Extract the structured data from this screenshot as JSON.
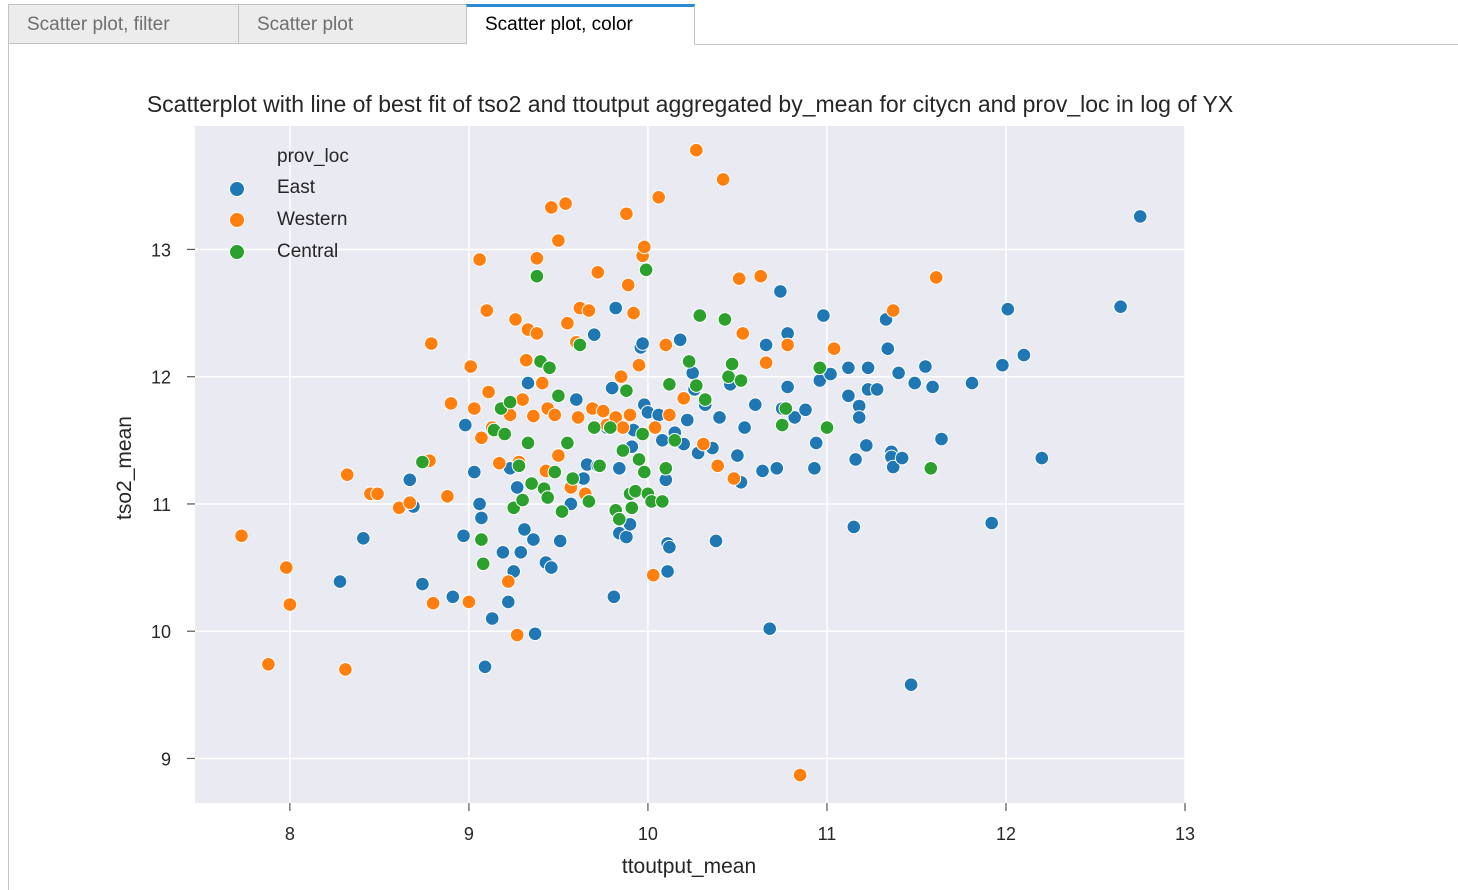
{
  "tabs": [
    {
      "label": "Scatter plot, filter",
      "active": false
    },
    {
      "label": "Scatter plot",
      "active": false
    },
    {
      "label": "Scatter plot, color",
      "active": true
    }
  ],
  "colors": {
    "East": "#1f77b4",
    "Western": "#ff7f0e",
    "Central": "#2ca02c",
    "plot_background": "#eaeaf2",
    "tab_accent": "#2a8ad4"
  },
  "chart_data": {
    "type": "scatter",
    "title": "Scatterplot with line of best fit of tso2 and ttoutput aggregated by_mean for citycn and prov_loc in log of YX",
    "xlabel": "ttoutput_mean",
    "ylabel": "tso2_mean",
    "xlim": [
      7.47,
      13.0
    ],
    "ylim": [
      8.65,
      13.97
    ],
    "xticks": [
      8,
      9,
      10,
      11,
      12,
      13
    ],
    "yticks": [
      9,
      10,
      11,
      12,
      13
    ],
    "grid": true,
    "legend": {
      "title": "prov_loc",
      "position": "top-left",
      "entries": [
        "East",
        "Western",
        "Central"
      ]
    },
    "series": [
      {
        "name": "East",
        "points": [
          [
            8.28,
            10.39
          ],
          [
            8.41,
            10.73
          ],
          [
            8.67,
            11.19
          ],
          [
            8.69,
            10.98
          ],
          [
            8.74,
            10.37
          ],
          [
            8.91,
            10.27
          ],
          [
            8.97,
            10.75
          ],
          [
            8.98,
            11.62
          ],
          [
            9.03,
            11.25
          ],
          [
            9.06,
            11.0
          ],
          [
            9.07,
            10.89
          ],
          [
            9.09,
            9.72
          ],
          [
            9.13,
            10.1
          ],
          [
            9.19,
            10.62
          ],
          [
            9.22,
            10.23
          ],
          [
            9.23,
            11.28
          ],
          [
            9.25,
            10.47
          ],
          [
            9.27,
            11.13
          ],
          [
            9.29,
            10.62
          ],
          [
            9.31,
            10.8
          ],
          [
            9.33,
            11.95
          ],
          [
            9.36,
            10.72
          ],
          [
            9.37,
            9.98
          ],
          [
            9.43,
            10.54
          ],
          [
            9.46,
            10.5
          ],
          [
            9.51,
            10.71
          ],
          [
            9.57,
            11.0
          ],
          [
            9.6,
            11.82
          ],
          [
            9.64,
            11.2
          ],
          [
            9.66,
            11.31
          ],
          [
            9.7,
            12.33
          ],
          [
            9.72,
            11.3
          ],
          [
            9.77,
            11.6
          ],
          [
            9.8,
            11.91
          ],
          [
            9.81,
            10.27
          ],
          [
            9.82,
            12.54
          ],
          [
            9.84,
            11.28
          ],
          [
            9.84,
            10.77
          ],
          [
            9.88,
            10.74
          ],
          [
            9.9,
            10.84
          ],
          [
            9.91,
            11.45
          ],
          [
            9.92,
            11.58
          ],
          [
            9.96,
            12.23
          ],
          [
            9.97,
            12.26
          ],
          [
            9.98,
            11.78
          ],
          [
            10.0,
            11.72
          ],
          [
            10.06,
            11.7
          ],
          [
            10.08,
            11.5
          ],
          [
            10.1,
            11.28
          ],
          [
            10.1,
            11.19
          ],
          [
            10.11,
            10.69
          ],
          [
            10.11,
            10.47
          ],
          [
            10.12,
            10.66
          ],
          [
            10.15,
            11.56
          ],
          [
            10.18,
            12.29
          ],
          [
            10.2,
            11.47
          ],
          [
            10.22,
            11.66
          ],
          [
            10.25,
            12.03
          ],
          [
            10.26,
            11.9
          ],
          [
            10.28,
            11.4
          ],
          [
            10.32,
            11.78
          ],
          [
            10.36,
            11.44
          ],
          [
            10.38,
            10.71
          ],
          [
            10.4,
            11.68
          ],
          [
            10.46,
            11.94
          ],
          [
            10.5,
            11.38
          ],
          [
            10.52,
            11.17
          ],
          [
            10.54,
            11.6
          ],
          [
            10.6,
            11.78
          ],
          [
            10.64,
            11.26
          ],
          [
            10.66,
            12.25
          ],
          [
            10.68,
            10.02
          ],
          [
            10.72,
            11.28
          ],
          [
            10.74,
            12.67
          ],
          [
            10.75,
            11.75
          ],
          [
            10.78,
            12.34
          ],
          [
            10.78,
            11.92
          ],
          [
            10.82,
            11.68
          ],
          [
            10.88,
            11.74
          ],
          [
            10.93,
            11.28
          ],
          [
            10.94,
            11.48
          ],
          [
            10.96,
            11.97
          ],
          [
            10.98,
            12.48
          ],
          [
            11.02,
            12.02
          ],
          [
            11.12,
            12.07
          ],
          [
            11.12,
            11.85
          ],
          [
            11.15,
            10.82
          ],
          [
            11.16,
            11.35
          ],
          [
            11.18,
            11.77
          ],
          [
            11.18,
            11.68
          ],
          [
            11.22,
            11.46
          ],
          [
            11.23,
            11.9
          ],
          [
            11.23,
            12.07
          ],
          [
            11.28,
            11.9
          ],
          [
            11.33,
            12.45
          ],
          [
            11.34,
            12.22
          ],
          [
            11.36,
            11.41
          ],
          [
            11.36,
            11.37
          ],
          [
            11.37,
            11.29
          ],
          [
            11.4,
            12.03
          ],
          [
            11.42,
            11.36
          ],
          [
            11.47,
            9.58
          ],
          [
            11.49,
            11.95
          ],
          [
            11.55,
            12.08
          ],
          [
            11.59,
            11.92
          ],
          [
            11.64,
            11.51
          ],
          [
            11.81,
            11.95
          ],
          [
            11.92,
            10.85
          ],
          [
            11.98,
            12.09
          ],
          [
            12.01,
            12.53
          ],
          [
            12.1,
            12.17
          ],
          [
            12.2,
            11.36
          ],
          [
            12.64,
            12.55
          ],
          [
            12.75,
            13.26
          ]
        ]
      },
      {
        "name": "Western",
        "points": [
          [
            7.73,
            10.75
          ],
          [
            7.88,
            9.74
          ],
          [
            7.98,
            10.5
          ],
          [
            8.0,
            10.21
          ],
          [
            8.31,
            9.7
          ],
          [
            8.32,
            11.23
          ],
          [
            8.45,
            11.08
          ],
          [
            8.49,
            11.08
          ],
          [
            8.61,
            10.97
          ],
          [
            8.67,
            11.01
          ],
          [
            8.78,
            11.34
          ],
          [
            8.79,
            12.26
          ],
          [
            8.8,
            10.22
          ],
          [
            8.88,
            11.06
          ],
          [
            8.9,
            11.79
          ],
          [
            9.0,
            10.23
          ],
          [
            9.01,
            12.08
          ],
          [
            9.03,
            11.75
          ],
          [
            9.06,
            12.92
          ],
          [
            9.07,
            11.52
          ],
          [
            9.1,
            12.52
          ],
          [
            9.11,
            11.88
          ],
          [
            9.13,
            11.6
          ],
          [
            9.17,
            11.32
          ],
          [
            9.22,
            10.39
          ],
          [
            9.23,
            11.7
          ],
          [
            9.26,
            12.45
          ],
          [
            9.27,
            9.97
          ],
          [
            9.28,
            11.33
          ],
          [
            9.3,
            11.82
          ],
          [
            9.32,
            12.13
          ],
          [
            9.33,
            12.37
          ],
          [
            9.36,
            11.69
          ],
          [
            9.38,
            12.34
          ],
          [
            9.38,
            12.93
          ],
          [
            9.41,
            11.95
          ],
          [
            9.43,
            11.26
          ],
          [
            9.44,
            11.75
          ],
          [
            9.46,
            13.33
          ],
          [
            9.48,
            11.7
          ],
          [
            9.5,
            11.38
          ],
          [
            9.5,
            13.07
          ],
          [
            9.54,
            13.36
          ],
          [
            9.55,
            12.42
          ],
          [
            9.57,
            11.13
          ],
          [
            9.6,
            12.27
          ],
          [
            9.61,
            11.68
          ],
          [
            9.62,
            12.54
          ],
          [
            9.65,
            11.08
          ],
          [
            9.67,
            12.52
          ],
          [
            9.69,
            11.75
          ],
          [
            9.72,
            12.82
          ],
          [
            9.75,
            11.73
          ],
          [
            9.77,
            11.62
          ],
          [
            9.82,
            11.68
          ],
          [
            9.85,
            12.0
          ],
          [
            9.86,
            11.6
          ],
          [
            9.88,
            13.28
          ],
          [
            9.89,
            12.72
          ],
          [
            9.9,
            11.7
          ],
          [
            9.92,
            12.5
          ],
          [
            9.95,
            12.09
          ],
          [
            9.97,
            12.95
          ],
          [
            9.98,
            13.02
          ],
          [
            10.03,
            10.44
          ],
          [
            10.04,
            11.6
          ],
          [
            10.06,
            13.41
          ],
          [
            10.1,
            12.25
          ],
          [
            10.12,
            11.7
          ],
          [
            10.2,
            11.83
          ],
          [
            10.27,
            13.78
          ],
          [
            10.31,
            11.47
          ],
          [
            10.39,
            11.3
          ],
          [
            10.42,
            13.55
          ],
          [
            10.48,
            11.2
          ],
          [
            10.51,
            12.77
          ],
          [
            10.53,
            12.34
          ],
          [
            10.63,
            12.79
          ],
          [
            10.66,
            12.11
          ],
          [
            10.78,
            12.25
          ],
          [
            10.85,
            8.87
          ],
          [
            11.04,
            12.22
          ],
          [
            11.37,
            12.52
          ],
          [
            11.61,
            12.78
          ]
        ]
      },
      {
        "name": "Central",
        "points": [
          [
            8.74,
            11.33
          ],
          [
            9.07,
            10.72
          ],
          [
            9.08,
            10.53
          ],
          [
            9.14,
            11.58
          ],
          [
            9.18,
            11.75
          ],
          [
            9.2,
            11.55
          ],
          [
            9.23,
            11.8
          ],
          [
            9.25,
            10.97
          ],
          [
            9.28,
            11.3
          ],
          [
            9.3,
            11.03
          ],
          [
            9.33,
            11.48
          ],
          [
            9.35,
            11.16
          ],
          [
            9.38,
            12.79
          ],
          [
            9.4,
            12.12
          ],
          [
            9.42,
            11.12
          ],
          [
            9.44,
            11.05
          ],
          [
            9.45,
            12.07
          ],
          [
            9.48,
            11.25
          ],
          [
            9.5,
            11.85
          ],
          [
            9.52,
            10.94
          ],
          [
            9.55,
            11.48
          ],
          [
            9.58,
            11.2
          ],
          [
            9.62,
            12.25
          ],
          [
            9.67,
            11.02
          ],
          [
            9.7,
            11.6
          ],
          [
            9.73,
            11.3
          ],
          [
            9.79,
            11.6
          ],
          [
            9.82,
            10.95
          ],
          [
            9.84,
            10.88
          ],
          [
            9.86,
            11.42
          ],
          [
            9.88,
            11.89
          ],
          [
            9.9,
            11.08
          ],
          [
            9.91,
            10.97
          ],
          [
            9.93,
            11.1
          ],
          [
            9.95,
            11.35
          ],
          [
            9.97,
            11.55
          ],
          [
            9.98,
            11.25
          ],
          [
            9.99,
            12.84
          ],
          [
            10.0,
            11.08
          ],
          [
            10.02,
            11.02
          ],
          [
            10.08,
            11.02
          ],
          [
            10.1,
            11.28
          ],
          [
            10.12,
            11.94
          ],
          [
            10.15,
            11.5
          ],
          [
            10.23,
            12.12
          ],
          [
            10.27,
            11.93
          ],
          [
            10.29,
            12.48
          ],
          [
            10.32,
            11.82
          ],
          [
            10.43,
            12.45
          ],
          [
            10.45,
            12.0
          ],
          [
            10.47,
            12.1
          ],
          [
            10.52,
            11.97
          ],
          [
            10.75,
            11.62
          ],
          [
            10.77,
            11.75
          ],
          [
            10.96,
            12.07
          ],
          [
            11.0,
            11.6
          ],
          [
            11.58,
            11.28
          ]
        ]
      }
    ]
  }
}
